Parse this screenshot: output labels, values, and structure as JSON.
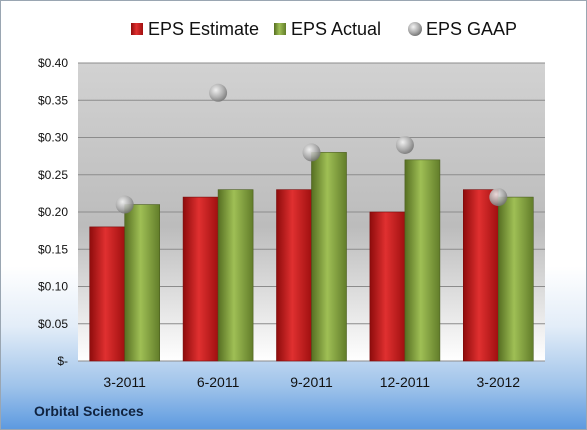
{
  "company_label": "Orbital Sciences",
  "chart_data": {
    "type": "bar",
    "title": "",
    "xlabel": "",
    "ylabel": "",
    "categories": [
      "3-2011",
      "6-2011",
      "9-2011",
      "12-2011",
      "3-2012"
    ],
    "series": [
      {
        "name": "EPS Estimate",
        "kind": "bar",
        "color": "#cc1a1a",
        "values": [
          0.18,
          0.22,
          0.23,
          0.2,
          0.23
        ]
      },
      {
        "name": "EPS Actual",
        "kind": "bar",
        "color": "#7f9d3a",
        "values": [
          0.21,
          0.23,
          0.28,
          0.27,
          0.22
        ]
      },
      {
        "name": "EPS GAAP",
        "kind": "marker",
        "color": "#b5b5b5",
        "values": [
          0.21,
          0.36,
          0.28,
          0.29,
          0.22
        ]
      }
    ],
    "ylim": [
      0,
      0.4
    ],
    "yticks": [
      0,
      0.05,
      0.1,
      0.15,
      0.2,
      0.25,
      0.3,
      0.35,
      0.4
    ],
    "ytick_labels": [
      "$-",
      "$0.05",
      "$0.10",
      "$0.15",
      "$0.20",
      "$0.25",
      "$0.30",
      "$0.35",
      "$0.40"
    ],
    "grid": true,
    "legend_position": "top"
  }
}
